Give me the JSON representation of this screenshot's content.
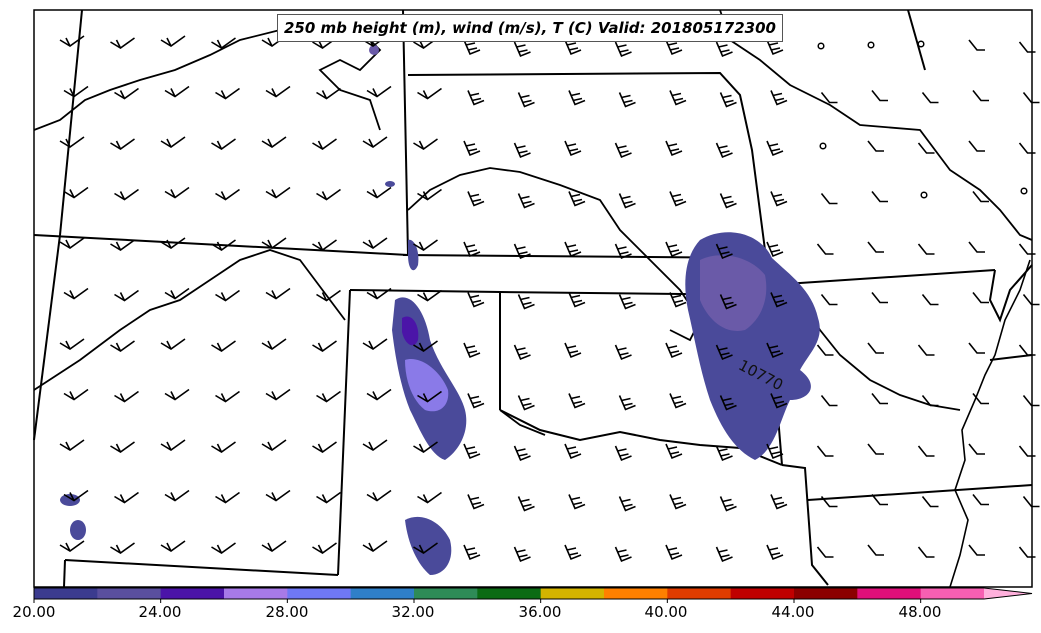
{
  "title": "250 mb height (m), wind (m/s), T (C) Valid: 201805172300",
  "contour_label": "10770",
  "colorbar": {
    "tick_labels": [
      "20.00",
      "24.00",
      "28.00",
      "32.00",
      "36.00",
      "40.00",
      "44.00",
      "48.00"
    ],
    "colors": [
      "#3b3b8f",
      "#5a4f9e",
      "#4b14a8",
      "#a77ae8",
      "#6f78f5",
      "#2f7fc8",
      "#2e8b57",
      "#0b6b14",
      "#d4b400",
      "#ff8000",
      "#e03c00",
      "#c00000",
      "#8b0000",
      "#e0107a",
      "#f75fb2",
      "#ffb0dc"
    ]
  },
  "colors": {
    "shade_dark": "#4a4a9a",
    "shade_mid": "#6a5aa8",
    "shade_light": "#8a7ae8",
    "boundary": "#000000"
  }
}
